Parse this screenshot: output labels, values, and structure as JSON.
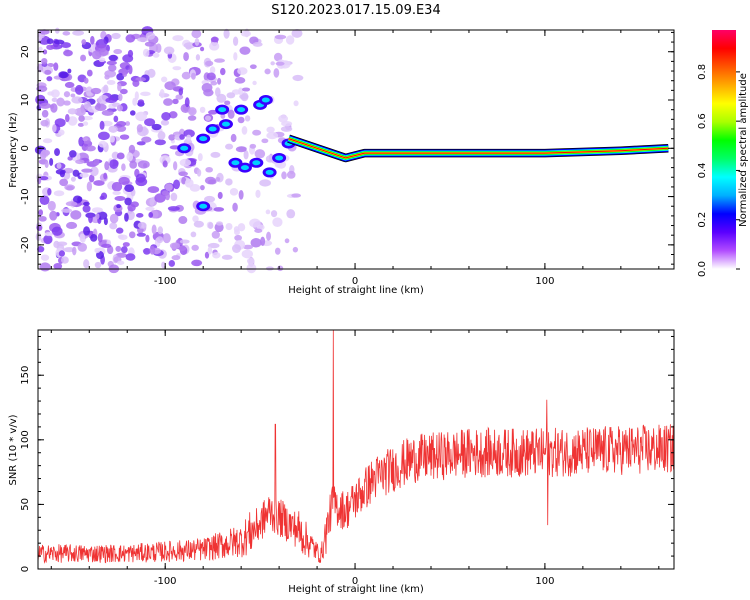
{
  "title": "S120.2023.017.15.09.E34",
  "chart_data": [
    {
      "type": "heatmap",
      "xlabel": "Height of straight line (km)",
      "ylabel": "Frequency (Hz)",
      "xlim": [
        -167,
        168
      ],
      "ylim": [
        -25,
        24.5
      ],
      "x_ticks": [
        -100,
        0,
        100
      ],
      "y_ticks": [
        -20,
        -10,
        0,
        10,
        20
      ],
      "colorbar": {
        "label": "Normalized spectral amplitude",
        "range": [
          0,
          0.97
        ],
        "ticks": [
          "0.0",
          "0.2",
          "0.4",
          "0.6",
          "0.8"
        ],
        "tick_values": [
          0.0,
          0.2,
          0.4,
          0.6,
          0.8
        ],
        "colormap": [
          "#ffffff",
          "#b14cff",
          "#5a00ff",
          "#0000ff",
          "#00b0ff",
          "#00ffff",
          "#00ff66",
          "#00ff00",
          "#aaff00",
          "#ffff00",
          "#ffaa00",
          "#ff5500",
          "#ff0000",
          "#ff0066"
        ]
      },
      "ridge_line": [
        {
          "x": -95,
          "y": 0
        },
        {
          "x": -70,
          "y": 3
        },
        {
          "x": -55,
          "y": 4
        },
        {
          "x": -35,
          "y": 2
        },
        {
          "x": -20,
          "y": 0
        },
        {
          "x": -5,
          "y": -2
        },
        {
          "x": 5,
          "y": -1
        },
        {
          "x": 60,
          "y": -1
        },
        {
          "x": 100,
          "y": -1
        },
        {
          "x": 140,
          "y": -0.5
        },
        {
          "x": 165,
          "y": 0
        }
      ]
    },
    {
      "type": "line",
      "xlabel": "Height of straight line (km)",
      "ylabel": "SNR (10 * v/v)",
      "xlim": [
        -167,
        168
      ],
      "ylim": [
        0,
        185
      ],
      "x_ticks": [
        -100,
        0,
        100
      ],
      "y_ticks": [
        0,
        50,
        100,
        150
      ],
      "line_color": "#ef3333",
      "envelope": [
        {
          "x": -167,
          "y": 12
        },
        {
          "x": -120,
          "y": 12
        },
        {
          "x": -80,
          "y": 15
        },
        {
          "x": -60,
          "y": 22
        },
        {
          "x": -50,
          "y": 35
        },
        {
          "x": -45,
          "y": 45
        },
        {
          "x": -30,
          "y": 30
        },
        {
          "x": -18,
          "y": 10
        },
        {
          "x": -12,
          "y": 50
        },
        {
          "x": -5,
          "y": 45
        },
        {
          "x": 10,
          "y": 70
        },
        {
          "x": 30,
          "y": 85
        },
        {
          "x": 60,
          "y": 90
        },
        {
          "x": 100,
          "y": 90
        },
        {
          "x": 140,
          "y": 92
        },
        {
          "x": 168,
          "y": 93
        }
      ],
      "spikes": [
        {
          "x": -11.5,
          "y": 185
        },
        {
          "x": -42,
          "y": 112
        },
        {
          "x": 101,
          "y": 131
        },
        {
          "x": 101.5,
          "y": 34
        }
      ]
    }
  ]
}
